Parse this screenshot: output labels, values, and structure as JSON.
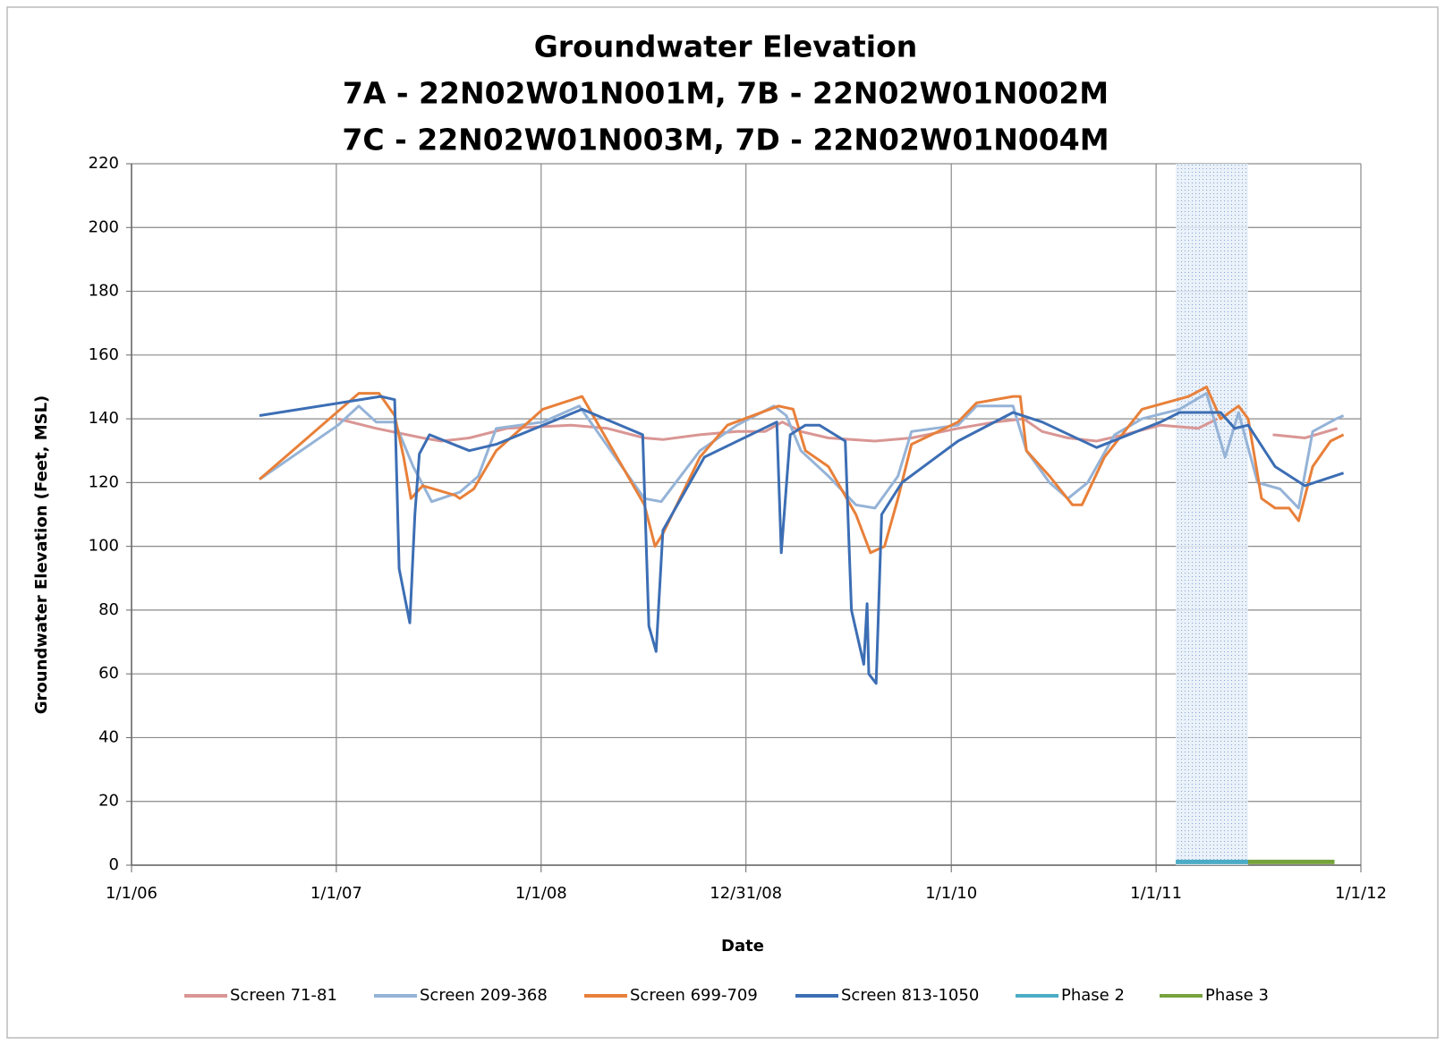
{
  "chart_data": {
    "type": "line",
    "title": "Groundwater Elevation",
    "subtitle": [
      "7A - 22N02W01N001M, 7B - 22N02W01N002M",
      "7C - 22N02W01N003M, 7D - 22N02W01N004M"
    ],
    "xlabel": "Date",
    "ylabel": "Groundwater Elevation (Feet, MSL)",
    "xlim": [
      "2006-01-01",
      "2012-01-01"
    ],
    "xticks": [
      {
        "value": "2006-01-01",
        "label": "1/1/06"
      },
      {
        "value": "2007-01-01",
        "label": "1/1/07"
      },
      {
        "value": "2008-01-01",
        "label": "1/1/08"
      },
      {
        "value": "2008-12-31",
        "label": "12/31/08"
      },
      {
        "value": "2010-01-01",
        "label": "1/1/10"
      },
      {
        "value": "2011-01-01",
        "label": "1/1/11"
      },
      {
        "value": "2012-01-01",
        "label": "1/1/12"
      }
    ],
    "ylim": [
      0,
      220
    ],
    "yticks": [
      0,
      20,
      40,
      60,
      80,
      100,
      120,
      140,
      160,
      180,
      200,
      220
    ],
    "grid": true,
    "legend": "bottom",
    "series": [
      {
        "name": "Screen 71-81",
        "color": "#d99694",
        "x": [
          "2007-01-04",
          "2007-03-13",
          "2007-06-04",
          "2007-07-07",
          "2007-08-26",
          "2007-11-01",
          "2008-02-24",
          "2008-04-28",
          "2008-07-03",
          "2008-08-05",
          "2008-10-10",
          "2008-12-15",
          "2009-02-03",
          "2009-03-06",
          "2009-04-08",
          "2009-05-27",
          "2009-08-18",
          "2009-10-22",
          "2010-01-13",
          "2010-03-20",
          "2010-05-10",
          "2010-06-12",
          "2010-07-28",
          "2010-09-17",
          "2010-11-05",
          "2011-01-09",
          "2011-03-17",
          "2011-04-20",
          "2011-06-01",
          "2011-07-28",
          "2011-09-23",
          "2011-11-20"
        ],
        "values": [
          140,
          137,
          134,
          133,
          134,
          137,
          138,
          137,
          134,
          133.5,
          135,
          136,
          136,
          139,
          136,
          134,
          133,
          134,
          137,
          139,
          140,
          136,
          134,
          133,
          135,
          138,
          137,
          140,
          null,
          135,
          134,
          137
        ]
      },
      {
        "name": "Screen 209-368",
        "color": "#95b3d7",
        "x": [
          "2006-08-17",
          "2007-01-04",
          "2007-02-10",
          "2007-03-13",
          "2007-04-15",
          "2007-05-18",
          "2007-06-20",
          "2007-08-09",
          "2007-09-11",
          "2007-10-13",
          "2008-01-04",
          "2008-03-09",
          "2008-07-03",
          "2008-08-02",
          "2008-10-10",
          "2008-12-15",
          "2009-02-19",
          "2009-03-13",
          "2009-04-08",
          "2009-05-27",
          "2009-07-15",
          "2009-08-18",
          "2009-09-28",
          "2009-10-22",
          "2010-01-13",
          "2010-02-15",
          "2010-04-21",
          "2010-05-15",
          "2010-06-25",
          "2010-07-28",
          "2010-09-01",
          "2010-10-19",
          "2010-12-07",
          "2011-02-12",
          "2011-04-01",
          "2011-05-04",
          "2011-05-28",
          "2011-07-01",
          "2011-08-10",
          "2011-09-12",
          "2011-10-07",
          "2011-11-18",
          "2011-12-01"
        ],
        "values": [
          121,
          138,
          144,
          139,
          139,
          125,
          114,
          117,
          122,
          137,
          139,
          144,
          115,
          114,
          130,
          138,
          144,
          141,
          130,
          122,
          113,
          112,
          122,
          136,
          138,
          144,
          144,
          130,
          120,
          115,
          120,
          135,
          140,
          143,
          148,
          128,
          142,
          120,
          118,
          112,
          136,
          140,
          141
        ]
      },
      {
        "name": "Screen 699-709",
        "color": "#e8803a",
        "x": [
          "2006-08-17",
          "2007-02-10",
          "2007-03-18",
          "2007-04-15",
          "2007-05-01",
          "2007-05-14",
          "2007-06-04",
          "2007-08-01",
          "2007-08-09",
          "2007-09-03",
          "2007-10-13",
          "2008-01-04",
          "2008-03-14",
          "2008-07-03",
          "2008-07-22",
          "2008-08-05",
          "2008-10-10",
          "2008-11-28",
          "2009-02-27",
          "2009-03-25",
          "2009-04-16",
          "2009-05-27",
          "2009-07-15",
          "2009-08-10",
          "2009-09-04",
          "2009-09-28",
          "2009-10-22",
          "2010-01-13",
          "2010-02-15",
          "2010-04-21",
          "2010-05-04",
          "2010-05-15",
          "2010-06-25",
          "2010-08-05",
          "2010-08-22",
          "2010-10-01",
          "2010-12-07",
          "2011-02-28",
          "2011-04-01",
          "2011-04-26",
          "2011-05-28",
          "2011-06-14",
          "2011-07-08",
          "2011-08-01",
          "2011-08-26",
          "2011-09-12",
          "2011-10-07",
          "2011-11-08",
          "2011-12-01"
        ],
        "values": [
          121,
          148,
          148,
          141,
          128,
          115,
          119,
          116,
          115,
          118,
          130,
          143,
          147,
          113,
          100,
          104,
          128,
          138,
          144,
          143,
          130,
          125,
          110,
          98,
          100,
          115,
          132,
          139,
          145,
          147,
          147,
          130,
          122,
          113,
          113,
          128,
          143,
          147,
          150,
          140,
          144,
          140,
          115,
          112,
          112,
          108,
          125,
          133,
          135
        ]
      },
      {
        "name": "Screen 813-1050",
        "color": "#3c6eb4",
        "x": [
          "2006-08-17",
          "2007-03-21",
          "2007-04-15",
          "2007-04-23",
          "2007-05-12",
          "2007-05-21",
          "2007-05-29",
          "2007-06-16",
          "2007-08-26",
          "2007-10-13",
          "2008-03-14",
          "2008-06-30",
          "2008-07-11",
          "2008-07-24",
          "2008-08-05",
          "2008-10-18",
          "2009-02-24",
          "2009-03-04",
          "2009-03-20",
          "2009-04-16",
          "2009-05-11",
          "2009-06-26",
          "2009-07-07",
          "2009-07-29",
          "2009-08-04",
          "2009-08-07",
          "2009-08-20",
          "2009-08-30",
          "2009-10-05",
          "2010-01-13",
          "2010-04-21",
          "2010-06-12",
          "2010-09-17",
          "2011-01-09",
          "2011-02-12",
          "2011-04-26",
          "2011-05-21",
          "2011-06-14",
          "2011-08-01",
          "2011-09-23",
          "2011-12-01"
        ],
        "values": [
          141,
          147,
          146,
          93,
          76,
          110,
          129,
          135,
          130,
          132,
          143,
          135,
          75,
          67,
          105,
          128,
          139,
          98,
          135,
          138,
          138,
          133,
          80,
          63,
          82,
          60,
          57,
          110,
          120,
          133,
          142,
          139,
          131,
          139,
          142,
          142,
          137,
          138,
          125,
          119,
          123
        ]
      },
      {
        "name": "Phase 2",
        "color": "#4bacc6",
        "x": [
          "2011-02-05",
          "2011-06-14"
        ],
        "values": [
          1,
          1
        ]
      },
      {
        "name": "Phase 3",
        "color": "#77a33c",
        "x": [
          "2011-06-14",
          "2011-11-15"
        ],
        "values": [
          1,
          1
        ]
      }
    ]
  }
}
